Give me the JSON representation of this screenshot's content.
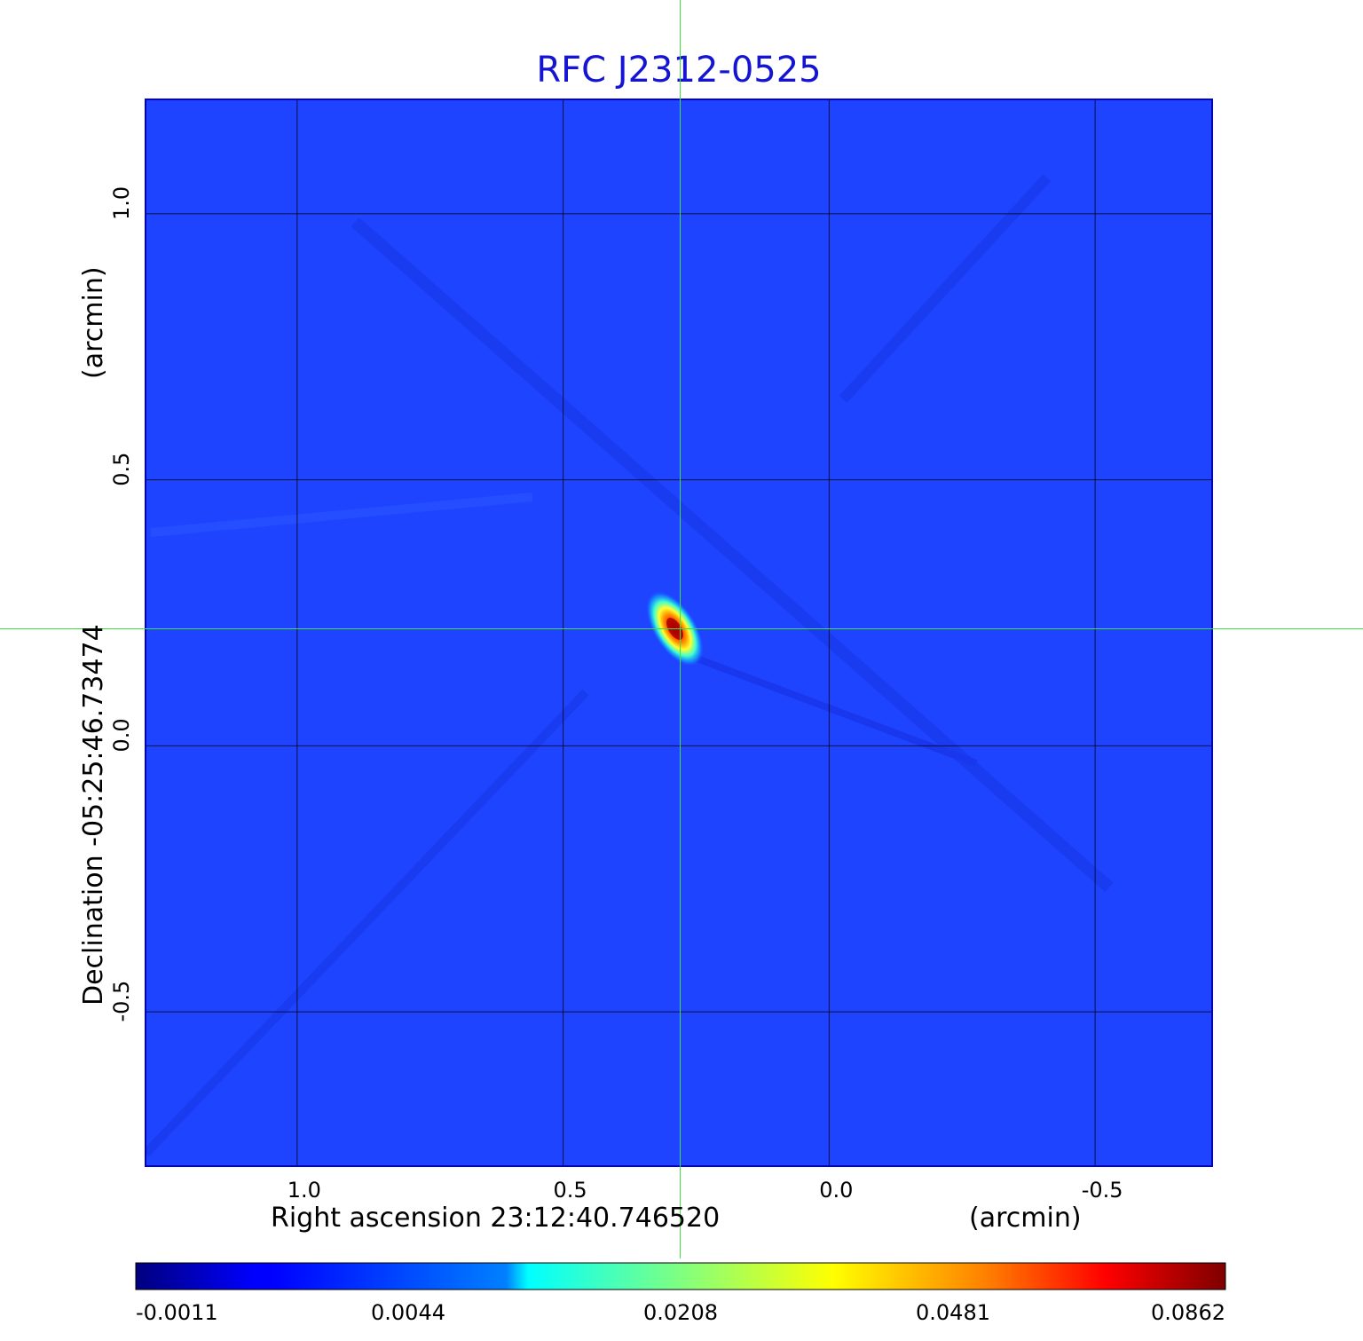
{
  "chart_data": {
    "type": "heatmap",
    "title": "RFC J2312-0525",
    "title_color": "#1414d2",
    "xlabel": "Right ascension  23:12:40.746520",
    "xlabel_unit": "(arcmin)",
    "ylabel": "Declination  -05:25:46.73474",
    "ylabel_unit": "(arcmin)",
    "x_range": [
      1.285,
      -0.72
    ],
    "y_range": [
      -0.79,
      1.215
    ],
    "x_ticks": [
      1.0,
      0.5,
      0.0,
      -0.5
    ],
    "x_tick_labels": [
      "1.0",
      "0.5",
      "0.0",
      "-0.5"
    ],
    "y_ticks": [
      1.0,
      0.5,
      0.0,
      -0.5
    ],
    "y_tick_labels": [
      "1.0",
      "0.5",
      "0.0",
      "-0.5"
    ],
    "grid": true,
    "crosshair": {
      "x": 0.28,
      "y": 0.22,
      "color": "#40e040"
    },
    "source_peak": {
      "x": 0.29,
      "y": 0.22,
      "value": 0.0862
    },
    "colorbar": {
      "colormap": "jet",
      "tick_labels": [
        "-0.0011",
        "0.0044",
        "0.0208",
        "0.0481",
        "0.0862"
      ]
    }
  }
}
